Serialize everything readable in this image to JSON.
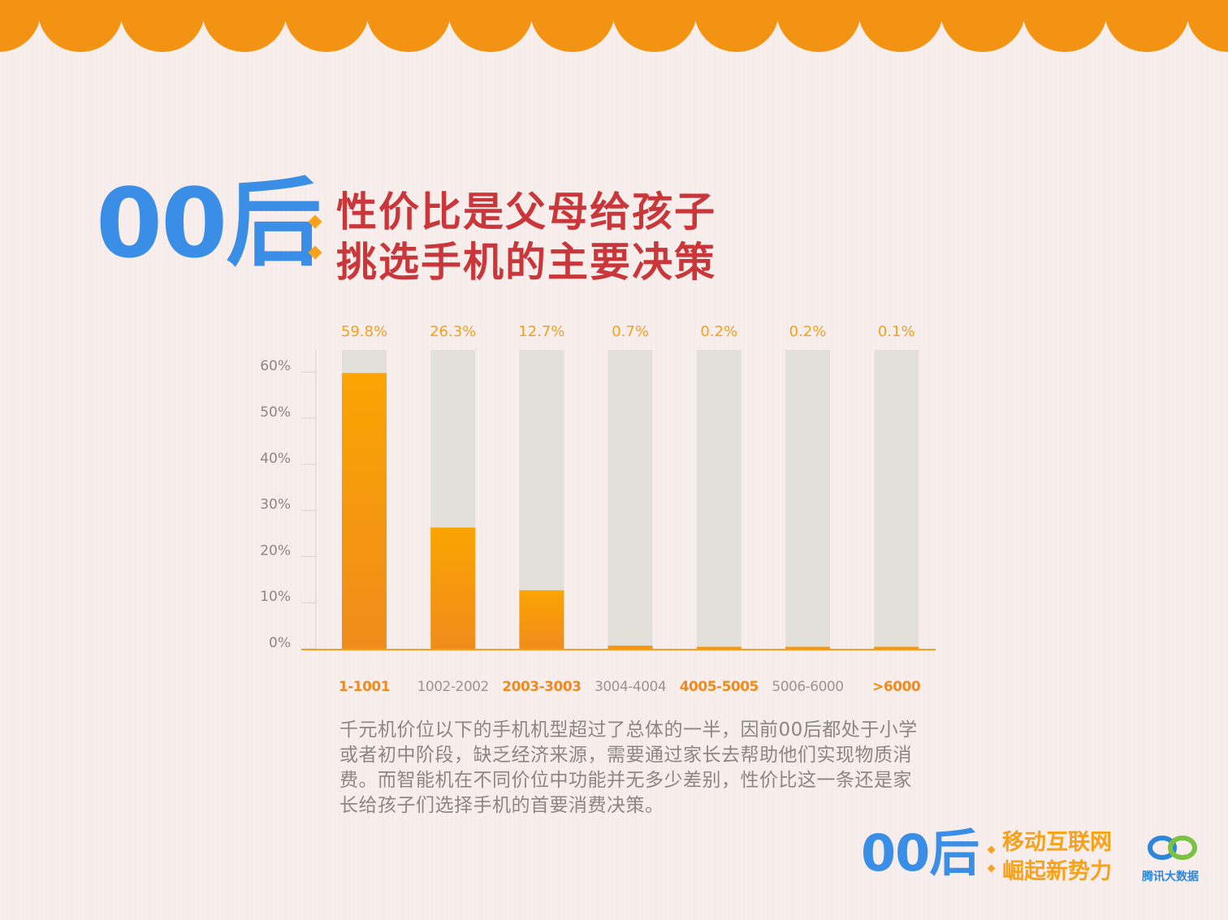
{
  "header": {
    "big_title": "00后",
    "headline_line1": "性价比是父母给孩子",
    "headline_line2": "挑选手机的主要决策"
  },
  "description": "千元机价位以下的手机机型超过了总体的一半，因前00后都处于小学或者初中阶段，缺乏经济来源，需要通过家长去帮助他们实现物质消费。而智能机在不同价位中功能并无多少差别，性价比这一条还是家长给孩子们选择手机的首要消费决策。",
  "footer": {
    "big_title": "00后",
    "line1": "移动互联网",
    "line2": "崛起新势力",
    "logo_text": "腾讯大数据"
  },
  "colors": {
    "accent_orange": "#f7a21a",
    "bar_orange": "#f9a00f",
    "bar_track": "#e3e0da",
    "title_blue": "#3b8ee6",
    "headline_red": "#c9373b",
    "top_band": "#f39314"
  },
  "chart_data": {
    "type": "bar",
    "categories": [
      "1-1001",
      "1002-2002",
      "2003-3003",
      "3004-4004",
      "4005-5005",
      "5006-6000",
      ">6000"
    ],
    "values": [
      59.8,
      26.3,
      12.7,
      0.7,
      0.2,
      0.2,
      0.1
    ],
    "value_labels": [
      "59.8%",
      "26.3%",
      "12.7%",
      "0.7%",
      "0.2%",
      "0.2%",
      "0.1%"
    ],
    "highlight_categories": [
      true,
      false,
      true,
      false,
      true,
      false,
      true
    ],
    "yticks": [
      "0%",
      "10%",
      "20%",
      "30%",
      "40%",
      "50%",
      "60%"
    ],
    "ylim": [
      0,
      65
    ],
    "grid": false,
    "title": "",
    "xlabel": "",
    "ylabel": ""
  }
}
